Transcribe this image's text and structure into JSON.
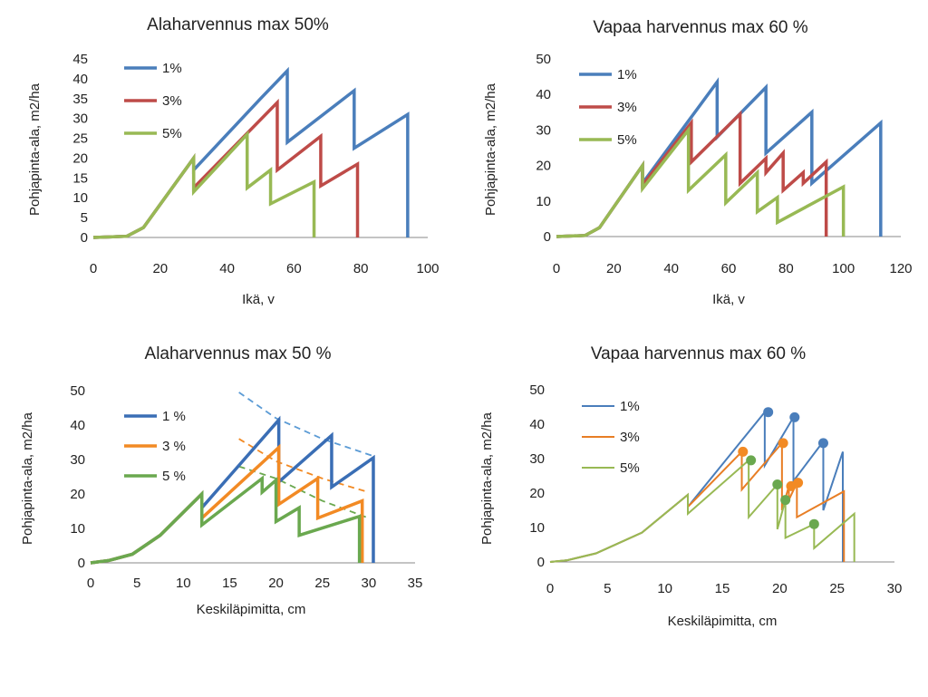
{
  "charts": [
    {
      "id": "p1",
      "title": "Alaharvennus max 50%",
      "xlabel": "Ikä, v",
      "ylabel": "Pohjapinta-ala, m2/ha",
      "xlim": [
        0,
        100
      ],
      "ylim": [
        0,
        45
      ],
      "xticks": [
        "0",
        "20",
        "40",
        "60",
        "80",
        "100"
      ],
      "yticks": [
        "0",
        "5",
        "10",
        "15",
        "20",
        "25",
        "30",
        "35",
        "40",
        "45"
      ],
      "legend": [
        "1%",
        "3%",
        "5%"
      ]
    },
    {
      "id": "p2",
      "title": "Vapaa harvennus max 60 %",
      "xlabel": "Ikä, v",
      "ylabel": "Pohjapinta-ala, m2/ha",
      "xlim": [
        0,
        120
      ],
      "ylim": [
        0,
        50
      ],
      "xticks": [
        "0",
        "20",
        "40",
        "60",
        "80",
        "100",
        "120"
      ],
      "yticks": [
        "0",
        "10",
        "20",
        "30",
        "40",
        "50"
      ],
      "legend": [
        "1%",
        "3%",
        "5%"
      ]
    },
    {
      "id": "p3",
      "title": "Alaharvennus max 50 %",
      "xlabel": "Keskiläpimitta, cm",
      "ylabel": "Pohjapinta-ala, m2/ha",
      "xlim": [
        0,
        35
      ],
      "ylim": [
        0,
        50
      ],
      "xticks": [
        "0",
        "5",
        "10",
        "15",
        "20",
        "25",
        "30",
        "35"
      ],
      "yticks": [
        "0",
        "10",
        "20",
        "30",
        "40",
        "50"
      ],
      "legend": [
        "1 %",
        "3 %",
        "5 %"
      ]
    },
    {
      "id": "p4",
      "title": "Vapaa harvennus max 60 %",
      "xlabel": "Keskiläpimitta, cm",
      "ylabel": "Pohjapinta-ala, m2/ha",
      "xlim": [
        0,
        30
      ],
      "ylim": [
        0,
        50
      ],
      "xticks": [
        "0",
        "5",
        "10",
        "15",
        "20",
        "25",
        "30"
      ],
      "yticks": [
        "0",
        "10",
        "20",
        "30",
        "40",
        "50"
      ],
      "legend": [
        "1%",
        "3%",
        "5%"
      ]
    }
  ],
  "chart_data": [
    {
      "type": "line",
      "title": "Alaharvennus max 50%",
      "xlabel": "Ikä, v",
      "ylabel": "Pohjapinta-ala, m2/ha",
      "xlim": [
        0,
        100
      ],
      "ylim": [
        0,
        45
      ],
      "series": [
        {
          "name": "1%",
          "color": "#4a7ebb",
          "x": [
            0,
            10,
            15,
            30,
            30,
            50,
            58,
            58,
            78,
            78,
            94,
            94
          ],
          "y": [
            0,
            0.3,
            2.5,
            20,
            17,
            35,
            42,
            24,
            37,
            22.5,
            31,
            0
          ]
        },
        {
          "name": "3%",
          "color": "#be4b48",
          "x": [
            0,
            10,
            15,
            30,
            30,
            55,
            55,
            68,
            68,
            79,
            79
          ],
          "y": [
            0,
            0.3,
            2.5,
            20,
            12.5,
            34,
            17,
            25.5,
            13,
            18.5,
            0
          ]
        },
        {
          "name": "5%",
          "color": "#98b954",
          "x": [
            0,
            10,
            15,
            30,
            30,
            46,
            46,
            53,
            53,
            66,
            66
          ],
          "y": [
            0,
            0.3,
            2.5,
            20,
            11.5,
            26,
            12.5,
            17,
            8.5,
            14,
            0
          ]
        }
      ]
    },
    {
      "type": "line",
      "title": "Vapaa harvennus max 60 %",
      "xlabel": "Ikä, v",
      "ylabel": "Pohjapinta-ala, m2/ha",
      "xlim": [
        0,
        120
      ],
      "ylim": [
        0,
        50
      ],
      "series": [
        {
          "name": "1%",
          "color": "#4a7ebb",
          "x": [
            0,
            10,
            15,
            30,
            30,
            56,
            56,
            73,
            73,
            89,
            89,
            113,
            113
          ],
          "y": [
            0,
            0.3,
            2.5,
            20,
            15,
            43.5,
            28,
            42,
            23.5,
            35,
            15,
            32,
            0
          ]
        },
        {
          "name": "3%",
          "color": "#be4b48",
          "x": [
            0,
            10,
            15,
            30,
            30,
            47,
            47,
            64,
            64,
            73,
            73,
            79,
            79,
            86,
            86,
            94,
            94
          ],
          "y": [
            0,
            0.3,
            2.5,
            20,
            14.5,
            32,
            21,
            34.5,
            15,
            22,
            18,
            23.5,
            13,
            18,
            15,
            21,
            0
          ]
        },
        {
          "name": "5%",
          "color": "#98b954",
          "x": [
            0,
            10,
            15,
            30,
            30,
            46,
            46,
            59,
            59,
            70,
            70,
            77,
            77,
            100,
            100
          ],
          "y": [
            0,
            0.3,
            2.5,
            20,
            13.5,
            30,
            13,
            23,
            9.5,
            18,
            7,
            11,
            4,
            14,
            0
          ]
        }
      ]
    },
    {
      "type": "line",
      "title": "Alaharvennus max 50 %",
      "xlabel": "Keskiläpimitta, cm",
      "ylabel": "Pohjapinta-ala, m2/ha",
      "xlim": [
        0,
        35
      ],
      "ylim": [
        0,
        50
      ],
      "series": [
        {
          "name": "1 %",
          "color": "#3a6eb5",
          "x": [
            0,
            2,
            4.5,
            7.5,
            12,
            12,
            20.3,
            20.3,
            26,
            26,
            30.5,
            30.5
          ],
          "y": [
            0,
            0.7,
            2.5,
            8,
            20,
            16,
            41.5,
            23.5,
            37,
            22,
            30.5,
            0
          ]
        },
        {
          "name": "3 %",
          "color": "#f28a24",
          "x": [
            0,
            2,
            4.5,
            7.5,
            12,
            12,
            20.3,
            20.3,
            24.5,
            24.5,
            29.3,
            29.3
          ],
          "y": [
            0,
            0.7,
            2.5,
            8,
            20,
            13,
            33.5,
            17,
            24.5,
            13,
            18,
            0
          ]
        },
        {
          "name": "5 %",
          "color": "#6aa84f",
          "x": [
            0,
            2,
            4.5,
            7.5,
            12,
            12,
            18.5,
            18.5,
            20,
            20,
            22.5,
            22.5,
            29,
            29
          ],
          "y": [
            0,
            0.7,
            2.5,
            8,
            20,
            11,
            24.5,
            20.5,
            24,
            12,
            16,
            8,
            13.5,
            0
          ]
        }
      ],
      "dashed": [
        {
          "color": "#5b9bd5",
          "x": [
            16,
            20,
            25,
            30.5
          ],
          "y": [
            49.5,
            42,
            36,
            31
          ]
        },
        {
          "color": "#f28a24",
          "x": [
            16,
            20,
            25,
            30
          ],
          "y": [
            36,
            29.5,
            24.5,
            20.5
          ]
        },
        {
          "color": "#6aa84f",
          "x": [
            16,
            20,
            25,
            30
          ],
          "y": [
            28,
            24.5,
            18,
            13
          ]
        }
      ]
    },
    {
      "type": "line",
      "title": "Vapaa harvennus max 60 %",
      "xlabel": "Keskiläpimitta, cm",
      "ylabel": "Pohjapinta-ala, m2/ha",
      "xlim": [
        0,
        30
      ],
      "ylim": [
        0,
        50
      ],
      "series": [
        {
          "name": "1%",
          "color": "#4a7ebb",
          "x": [
            0,
            1.5,
            4,
            8,
            12,
            12,
            18.7,
            18.7,
            21.2,
            21.2,
            23.8,
            23.8,
            25.5,
            25.5
          ],
          "y": [
            0,
            0.5,
            2.5,
            8.5,
            19.5,
            16,
            43.5,
            28,
            42,
            23.5,
            35,
            15,
            32,
            0
          ]
        },
        {
          "name": "3%",
          "color": "#e87e25",
          "x": [
            0,
            1.5,
            4,
            8,
            12,
            12,
            16.7,
            16.7,
            20.2,
            20.2,
            20.8,
            20.8,
            21.5,
            21.5,
            25.6,
            25.6
          ],
          "y": [
            0,
            0.5,
            2.5,
            8.5,
            19.5,
            16,
            32,
            21,
            34.5,
            15,
            22,
            18,
            23,
            13,
            20.5,
            0
          ]
        },
        {
          "name": "5%",
          "color": "#98b954",
          "x": [
            0,
            1.5,
            4,
            8,
            12,
            12,
            17.3,
            17.3,
            19.8,
            19.8,
            20.5,
            20.5,
            23,
            23,
            26.5,
            26.5
          ],
          "y": [
            0,
            0.5,
            2.5,
            8.5,
            19.5,
            14,
            29.5,
            13,
            22.5,
            9.5,
            18,
            7,
            11,
            4,
            14,
            0
          ]
        }
      ],
      "markers": [
        {
          "color": "#4a7ebb",
          "points": [
            [
              19,
              43.5
            ],
            [
              21.3,
              42
            ],
            [
              23.8,
              34.5
            ]
          ]
        },
        {
          "color": "#f28a24",
          "points": [
            [
              16.8,
              32
            ],
            [
              20.3,
              34.5
            ],
            [
              21,
              22
            ],
            [
              21.6,
              23
            ]
          ]
        },
        {
          "color": "#6aa84f",
          "points": [
            [
              17.5,
              29.5
            ],
            [
              19.8,
              22.5
            ],
            [
              20.5,
              18
            ],
            [
              23,
              11
            ]
          ]
        }
      ]
    }
  ]
}
